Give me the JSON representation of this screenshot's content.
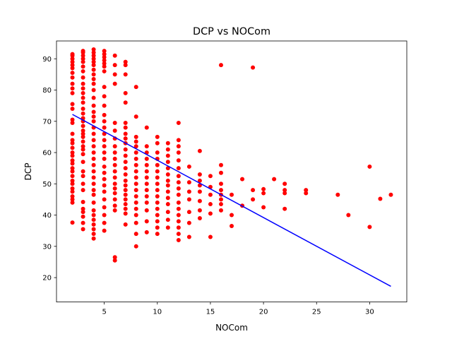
{
  "chart_data": {
    "type": "scatter",
    "title": "DCP vs NOCom",
    "xlabel": "NOCom",
    "ylabel": "DCP",
    "xlim": [
      0.5,
      33.5
    ],
    "ylim": [
      12.2,
      95.7
    ],
    "xticks": [
      5,
      10,
      15,
      20,
      25,
      30
    ],
    "yticks": [
      20,
      30,
      40,
      50,
      60,
      70,
      80,
      90
    ],
    "grid": false,
    "series": [
      {
        "name": "observations",
        "color": "#ff0000",
        "points": [
          [
            2,
            37.6
          ],
          [
            2,
            44
          ],
          [
            2,
            45
          ],
          [
            2,
            46
          ],
          [
            2,
            47.5
          ],
          [
            2,
            48.5
          ],
          [
            2,
            50
          ],
          [
            2,
            51
          ],
          [
            2,
            52.5
          ],
          [
            2,
            54
          ],
          [
            2,
            55
          ],
          [
            2,
            56.5
          ],
          [
            2,
            57.5
          ],
          [
            2,
            59
          ],
          [
            2,
            60
          ],
          [
            2,
            61.5
          ],
          [
            2,
            63
          ],
          [
            2,
            64
          ],
          [
            2,
            66
          ],
          [
            2,
            69.5
          ],
          [
            2,
            70.5
          ],
          [
            2,
            74
          ],
          [
            2,
            75.5
          ],
          [
            2,
            79
          ],
          [
            2,
            80.5
          ],
          [
            2,
            82
          ],
          [
            2,
            84
          ],
          [
            2,
            85.5
          ],
          [
            2,
            87
          ],
          [
            2,
            88
          ],
          [
            2,
            89
          ],
          [
            2,
            90
          ],
          [
            2,
            91
          ],
          [
            2,
            91.5
          ],
          [
            3,
            35.5
          ],
          [
            3,
            37.5
          ],
          [
            3,
            39.5
          ],
          [
            3,
            41
          ],
          [
            3,
            42
          ],
          [
            3,
            44.2
          ],
          [
            3,
            48
          ],
          [
            3,
            50
          ],
          [
            3,
            52.5
          ],
          [
            3,
            54
          ],
          [
            3,
            57
          ],
          [
            3,
            59.5
          ],
          [
            3,
            61
          ],
          [
            3,
            62
          ],
          [
            3,
            63.5
          ],
          [
            3,
            65
          ],
          [
            3,
            66
          ],
          [
            3,
            67
          ],
          [
            3,
            68.5
          ],
          [
            3,
            70
          ],
          [
            3,
            71
          ],
          [
            3,
            72.5
          ],
          [
            3,
            74
          ],
          [
            3,
            76
          ],
          [
            3,
            77.5
          ],
          [
            3,
            79
          ],
          [
            3,
            80.5
          ],
          [
            3,
            82
          ],
          [
            3,
            84
          ],
          [
            3,
            86
          ],
          [
            3,
            87.5
          ],
          [
            3,
            89
          ],
          [
            3,
            90
          ],
          [
            3,
            91
          ],
          [
            3,
            92
          ],
          [
            3,
            92.5
          ],
          [
            4,
            32.5
          ],
          [
            4,
            34
          ],
          [
            4,
            35.5
          ],
          [
            4,
            37
          ],
          [
            4,
            38.5
          ],
          [
            4,
            40
          ],
          [
            4,
            41.5
          ],
          [
            4,
            44
          ],
          [
            4,
            46.5
          ],
          [
            4,
            48
          ],
          [
            4,
            50
          ],
          [
            4,
            52
          ],
          [
            4,
            54
          ],
          [
            4,
            56
          ],
          [
            4,
            58
          ],
          [
            4,
            60
          ],
          [
            4,
            62
          ],
          [
            4,
            64
          ],
          [
            4,
            66
          ],
          [
            4,
            68
          ],
          [
            4,
            70
          ],
          [
            4,
            71.5
          ],
          [
            4,
            73
          ],
          [
            4,
            75
          ],
          [
            4,
            77.5
          ],
          [
            4,
            80
          ],
          [
            4,
            82
          ],
          [
            4,
            83.5
          ],
          [
            4,
            85
          ],
          [
            4,
            86.5
          ],
          [
            4,
            88
          ],
          [
            4,
            89
          ],
          [
            4,
            90
          ],
          [
            4,
            91
          ],
          [
            4,
            92
          ],
          [
            4,
            93
          ],
          [
            5,
            35
          ],
          [
            5,
            37.5
          ],
          [
            5,
            40
          ],
          [
            5,
            42.5
          ],
          [
            5,
            45
          ],
          [
            5,
            47.5
          ],
          [
            5,
            49.5
          ],
          [
            5,
            51.5
          ],
          [
            5,
            53.5
          ],
          [
            5,
            55.5
          ],
          [
            5,
            58
          ],
          [
            5,
            60
          ],
          [
            5,
            62
          ],
          [
            5,
            64
          ],
          [
            5,
            66
          ],
          [
            5,
            68
          ],
          [
            5,
            70
          ],
          [
            5,
            72
          ],
          [
            5,
            75
          ],
          [
            5,
            78
          ],
          [
            5,
            81
          ],
          [
            5,
            86
          ],
          [
            5,
            87.5
          ],
          [
            5,
            88.5
          ],
          [
            5,
            89.5
          ],
          [
            5,
            90.5
          ],
          [
            5,
            91.5
          ],
          [
            5,
            92.5
          ],
          [
            6,
            25.5
          ],
          [
            6,
            26.5
          ],
          [
            6,
            41.5
          ],
          [
            6,
            43
          ],
          [
            6,
            45
          ],
          [
            6,
            47
          ],
          [
            6,
            48.5
          ],
          [
            6,
            50
          ],
          [
            6,
            52
          ],
          [
            6,
            54
          ],
          [
            6,
            56
          ],
          [
            6,
            58
          ],
          [
            6,
            60
          ],
          [
            6,
            62
          ],
          [
            6,
            64.5
          ],
          [
            6,
            67
          ],
          [
            6,
            69.5
          ],
          [
            6,
            82
          ],
          [
            6,
            85
          ],
          [
            6,
            88
          ],
          [
            6,
            91
          ],
          [
            7,
            37
          ],
          [
            7,
            40.5
          ],
          [
            7,
            42
          ],
          [
            7,
            43.5
          ],
          [
            7,
            45
          ],
          [
            7,
            46.5
          ],
          [
            7,
            48
          ],
          [
            7,
            49.5
          ],
          [
            7,
            51
          ],
          [
            7,
            53
          ],
          [
            7,
            55
          ],
          [
            7,
            57
          ],
          [
            7,
            59
          ],
          [
            7,
            61
          ],
          [
            7,
            63
          ],
          [
            7,
            64.5
          ],
          [
            7,
            66
          ],
          [
            7,
            68
          ],
          [
            7,
            69.5
          ],
          [
            7,
            76
          ],
          [
            7,
            79
          ],
          [
            7,
            85
          ],
          [
            7,
            88
          ],
          [
            7,
            89
          ],
          [
            8,
            30
          ],
          [
            8,
            34
          ],
          [
            8,
            37.5
          ],
          [
            8,
            40
          ],
          [
            8,
            42
          ],
          [
            8,
            44
          ],
          [
            8,
            46
          ],
          [
            8,
            48
          ],
          [
            8,
            50
          ],
          [
            8,
            52
          ],
          [
            8,
            54
          ],
          [
            8,
            56
          ],
          [
            8,
            58
          ],
          [
            8,
            60
          ],
          [
            8,
            62
          ],
          [
            8,
            63.5
          ],
          [
            8,
            65
          ],
          [
            8,
            71.5
          ],
          [
            8,
            81
          ],
          [
            9,
            34.5
          ],
          [
            9,
            38
          ],
          [
            9,
            41.5
          ],
          [
            9,
            44
          ],
          [
            9,
            46
          ],
          [
            9,
            48
          ],
          [
            9,
            50
          ],
          [
            9,
            52
          ],
          [
            9,
            54
          ],
          [
            9,
            56
          ],
          [
            9,
            58
          ],
          [
            9,
            60
          ],
          [
            9,
            62
          ],
          [
            9,
            68
          ],
          [
            10,
            34
          ],
          [
            10,
            36
          ],
          [
            10,
            38
          ],
          [
            10,
            40
          ],
          [
            10,
            42
          ],
          [
            10,
            44
          ],
          [
            10,
            46
          ],
          [
            10,
            48
          ],
          [
            10,
            50
          ],
          [
            10,
            52
          ],
          [
            10,
            54
          ],
          [
            10,
            56
          ],
          [
            10,
            58
          ],
          [
            10,
            60
          ],
          [
            10,
            63
          ],
          [
            10,
            65
          ],
          [
            11,
            36
          ],
          [
            11,
            38.5
          ],
          [
            11,
            41
          ],
          [
            11,
            43.5
          ],
          [
            11,
            45.5
          ],
          [
            11,
            47.5
          ],
          [
            11,
            49.5
          ],
          [
            11,
            51
          ],
          [
            11,
            53
          ],
          [
            11,
            55
          ],
          [
            11,
            57
          ],
          [
            11,
            59
          ],
          [
            11,
            61
          ],
          [
            11,
            63
          ],
          [
            12,
            32
          ],
          [
            12,
            34
          ],
          [
            12,
            36
          ],
          [
            12,
            38
          ],
          [
            12,
            40
          ],
          [
            12,
            42
          ],
          [
            12,
            44
          ],
          [
            12,
            46.5
          ],
          [
            12,
            48.5
          ],
          [
            12,
            50.5
          ],
          [
            12,
            52.5
          ],
          [
            12,
            55
          ],
          [
            12,
            57.5
          ],
          [
            12,
            60
          ],
          [
            12,
            62
          ],
          [
            12,
            64
          ],
          [
            12,
            69.5
          ],
          [
            13,
            33
          ],
          [
            13,
            37.5
          ],
          [
            13,
            41
          ],
          [
            13,
            45
          ],
          [
            13,
            47.5
          ],
          [
            13,
            50.5
          ],
          [
            13,
            55.5
          ],
          [
            14,
            39
          ],
          [
            14,
            41.5
          ],
          [
            14,
            44.5
          ],
          [
            14,
            47.5
          ],
          [
            14,
            49.5
          ],
          [
            14,
            51
          ],
          [
            14,
            53
          ],
          [
            14,
            60.5
          ],
          [
            15,
            33
          ],
          [
            15,
            40.5
          ],
          [
            15,
            43.5
          ],
          [
            15,
            46.5
          ],
          [
            15,
            49
          ],
          [
            15,
            52.5
          ],
          [
            16,
            41.5
          ],
          [
            16,
            43.5
          ],
          [
            16,
            45
          ],
          [
            16,
            46.5
          ],
          [
            16,
            48
          ],
          [
            16,
            50
          ],
          [
            16,
            53.5
          ],
          [
            16,
            56
          ],
          [
            16,
            88
          ],
          [
            17,
            36.5
          ],
          [
            17,
            40
          ],
          [
            17,
            46.5
          ],
          [
            18,
            43
          ],
          [
            18,
            51.5
          ],
          [
            19,
            45
          ],
          [
            19,
            48
          ],
          [
            19,
            87.2
          ],
          [
            20,
            42.5
          ],
          [
            20,
            47
          ],
          [
            20,
            48.3
          ],
          [
            21,
            51.5
          ],
          [
            22,
            42
          ],
          [
            22,
            47
          ],
          [
            22,
            48
          ],
          [
            22,
            50
          ],
          [
            24,
            47
          ],
          [
            24,
            48
          ],
          [
            27,
            46.5
          ],
          [
            28,
            40
          ],
          [
            30,
            36.2
          ],
          [
            30,
            55.5
          ],
          [
            31,
            45.2
          ],
          [
            32,
            46.5
          ]
        ]
      }
    ],
    "fit_line": {
      "name": "regression",
      "color": "#0000ff",
      "x": [
        2,
        32
      ],
      "y": [
        72.2,
        17.2
      ]
    }
  }
}
